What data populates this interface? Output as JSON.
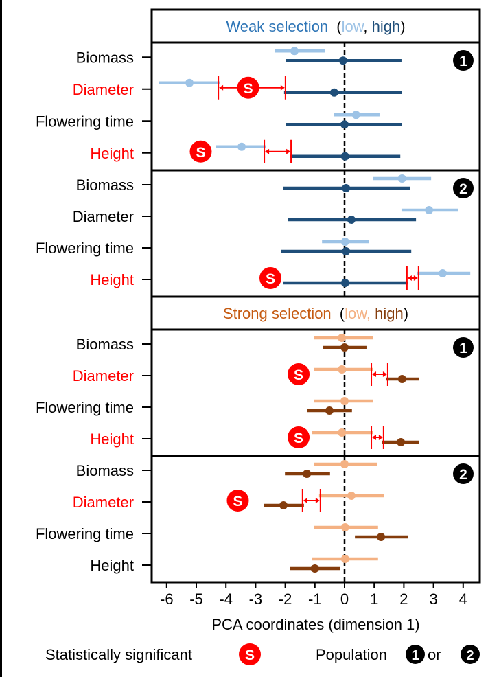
{
  "colors": {
    "weak_title": "#2e75b6",
    "weak_low": "#9dc3e6",
    "weak_high": "#1f4e79",
    "strong_title": "#c55a11",
    "strong_low": "#f4b183",
    "strong_high": "#843c0c",
    "significant": "#ff0000",
    "text": "#000000"
  },
  "chart_data": {
    "type": "forest-plot",
    "xlabel": "PCA coordinates (dimension 1)",
    "xlim": [
      -6.5,
      4.5
    ],
    "xticks": [
      -6,
      -5,
      -4,
      -3,
      -2,
      -1,
      0,
      1,
      2,
      3,
      4
    ],
    "reference_line": 0,
    "legend": {
      "significant_label": "Statistically significant",
      "significant_marker": "S",
      "population_label": "Population",
      "population_or": "or",
      "population_markers": [
        "1",
        "2"
      ]
    },
    "groups": [
      {
        "title": "Weak selection",
        "title_paren_open": "(",
        "low_label": "low",
        "sep": ",",
        "high_label": "high",
        "title_paren_close": ")",
        "panels": [
          {
            "population": "1",
            "traits": [
              {
                "name": "Biomass",
                "significant": false,
                "low": {
                  "mean": -1.69,
                  "lo": -2.36,
                  "hi": -0.65
                },
                "high": {
                  "mean": -0.05,
                  "lo": -1.99,
                  "hi": 1.92
                }
              },
              {
                "name": "Diameter",
                "significant": true,
                "s_at": -3.25,
                "low": {
                  "mean": -5.23,
                  "lo": -6.25,
                  "hi": -4.21
                },
                "high": {
                  "mean": -0.35,
                  "lo": -2.04,
                  "hi": 1.94
                }
              },
              {
                "name": "Flowering time",
                "significant": false,
                "low": {
                  "mean": 0.39,
                  "lo": -0.37,
                  "hi": 1.18
                },
                "high": {
                  "mean": 0.0,
                  "lo": -1.97,
                  "hi": 1.94
                }
              },
              {
                "name": "Height",
                "significant": true,
                "s_at": -4.85,
                "low": {
                  "mean": -3.47,
                  "lo": -4.33,
                  "hi": -2.66
                },
                "high": {
                  "mean": 0.02,
                  "lo": -1.85,
                  "hi": 1.88
                }
              }
            ]
          },
          {
            "population": "2",
            "traits": [
              {
                "name": "Biomass",
                "significant": false,
                "low": {
                  "mean": 1.94,
                  "lo": 0.97,
                  "hi": 2.92
                },
                "high": {
                  "mean": 0.05,
                  "lo": -2.08,
                  "hi": 2.22
                }
              },
              {
                "name": "Diameter",
                "significant": false,
                "low": {
                  "mean": 2.85,
                  "lo": 1.92,
                  "hi": 3.84
                },
                "high": {
                  "mean": 0.23,
                  "lo": -1.92,
                  "hi": 2.41
                }
              },
              {
                "name": "Flowering time",
                "significant": false,
                "low": {
                  "mean": 0.02,
                  "lo": -0.76,
                  "hi": 0.83
                },
                "high": {
                  "mean": 0.05,
                  "lo": -2.15,
                  "hi": 2.25
                }
              },
              {
                "name": "Height",
                "significant": true,
                "s_at": -2.5,
                "low": {
                  "mean": 3.31,
                  "lo": 2.45,
                  "hi": 4.24
                },
                "high": {
                  "mean": 0.02,
                  "lo": -2.08,
                  "hi": 2.15
                }
              }
            ]
          }
        ]
      },
      {
        "title": "Strong selection",
        "title_paren_open": "(",
        "low_label": "low",
        "sep": ",",
        "high_label": "high",
        "title_paren_close": ")",
        "panels": [
          {
            "population": "1",
            "traits": [
              {
                "name": "Biomass",
                "significant": false,
                "low": {
                  "mean": -0.09,
                  "lo": -1.04,
                  "hi": 0.95
                },
                "high": {
                  "mean": 0.0,
                  "lo": -0.74,
                  "hi": 0.74
                }
              },
              {
                "name": "Diameter",
                "significant": true,
                "s_at": -1.55,
                "low": {
                  "mean": -0.09,
                  "lo": -1.04,
                  "hi": 0.95
                },
                "high": {
                  "mean": 1.94,
                  "lo": 1.41,
                  "hi": 2.5
                }
              },
              {
                "name": "Flowering time",
                "significant": false,
                "low": {
                  "mean": 0.0,
                  "lo": -1.02,
                  "hi": 0.95
                },
                "high": {
                  "mean": -0.51,
                  "lo": -1.27,
                  "hi": 0.25
                }
              },
              {
                "name": "Height",
                "significant": true,
                "s_at": -1.55,
                "low": {
                  "mean": -0.09,
                  "lo": -1.09,
                  "hi": 0.95
                },
                "high": {
                  "mean": 1.9,
                  "lo": 1.27,
                  "hi": 2.52
                }
              }
            ]
          },
          {
            "population": "2",
            "traits": [
              {
                "name": "Biomass",
                "significant": false,
                "low": {
                  "mean": 0.0,
                  "lo": -1.04,
                  "hi": 1.11
                },
                "high": {
                  "mean": -1.27,
                  "lo": -2.01,
                  "hi": -0.49
                }
              },
              {
                "name": "Diameter",
                "significant": true,
                "s_at": -3.6,
                "low": {
                  "mean": 0.23,
                  "lo": -0.86,
                  "hi": 1.32
                },
                "high": {
                  "mean": -2.06,
                  "lo": -2.73,
                  "hi": -1.37
                }
              },
              {
                "name": "Flowering time",
                "significant": false,
                "low": {
                  "mean": 0.02,
                  "lo": -1.04,
                  "hi": 1.13
                },
                "high": {
                  "mean": 1.23,
                  "lo": 0.35,
                  "hi": 2.15
                }
              },
              {
                "name": "Height",
                "significant": false,
                "low": {
                  "mean": 0.02,
                  "lo": -1.09,
                  "hi": 1.13
                },
                "high": {
                  "mean": -1.0,
                  "lo": -1.85,
                  "hi": -0.16
                }
              }
            ]
          }
        ]
      }
    ]
  }
}
